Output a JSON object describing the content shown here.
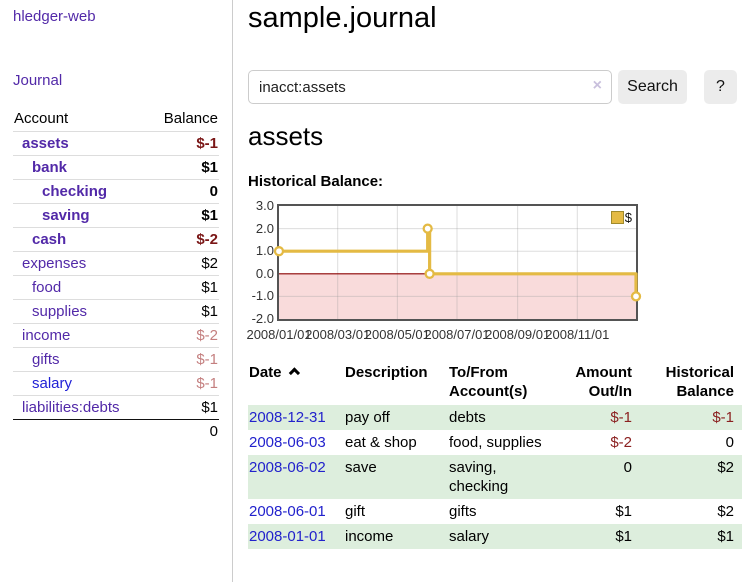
{
  "colors": {
    "link_purple": "#5229a8",
    "link_blue": "#2121d6",
    "negative_strong": "#7a1616",
    "negative_soft": "#c47f7f",
    "date_link_blue": "#2222cc",
    "row_green": "#ddeedd",
    "chart_gold": "#e4ba44",
    "chart_pink": "#f9dbdb",
    "chart_zero_line": "#8b0000"
  },
  "sidebar": {
    "app_title": "hledger-web",
    "nav": {
      "journal": "Journal"
    },
    "accounts_table": {
      "headers": {
        "account": "Account",
        "balance": "Balance"
      },
      "rows": [
        {
          "account": "assets",
          "balance": "$-1",
          "indent": 0,
          "bold": true,
          "link": "purple",
          "balance_style": "neg-strong"
        },
        {
          "account": "bank",
          "balance": "$1",
          "indent": 1,
          "bold": true,
          "link": "purple",
          "balance_style": "normal"
        },
        {
          "account": "checking",
          "balance": "0",
          "indent": 2,
          "bold": true,
          "link": "purple",
          "balance_style": "normal"
        },
        {
          "account": "saving",
          "balance": "$1",
          "indent": 2,
          "bold": true,
          "link": "purple",
          "balance_style": "normal"
        },
        {
          "account": "cash",
          "balance": "$-2",
          "indent": 1,
          "bold": true,
          "link": "purple",
          "balance_style": "neg-strong"
        },
        {
          "account": "expenses",
          "balance": "$2",
          "indent": 0,
          "bold": false,
          "link": "purple",
          "balance_style": "normal"
        },
        {
          "account": "food",
          "balance": "$1",
          "indent": 1,
          "bold": false,
          "link": "purple",
          "balance_style": "normal"
        },
        {
          "account": "supplies",
          "balance": "$1",
          "indent": 1,
          "bold": false,
          "link": "purple",
          "balance_style": "normal"
        },
        {
          "account": "income",
          "balance": "$-2",
          "indent": 0,
          "bold": false,
          "link": "purple",
          "balance_style": "neg-soft"
        },
        {
          "account": "gifts",
          "balance": "$-1",
          "indent": 1,
          "bold": false,
          "link": "purple",
          "balance_style": "neg-soft"
        },
        {
          "account": "salary",
          "balance": "$-1",
          "indent": 1,
          "bold": false,
          "link": "blue",
          "balance_style": "neg-soft"
        },
        {
          "account": "liabilities:debts",
          "balance": "$1",
          "indent": 0,
          "bold": false,
          "link": "purple",
          "balance_style": "normal"
        }
      ],
      "total": "0"
    }
  },
  "main": {
    "title": "sample.journal",
    "search": {
      "value": "inacct:assets",
      "placeholder": "",
      "clear_icon": "×",
      "search_button": "Search",
      "help_button": "?"
    },
    "account_heading": "assets",
    "chart_heading": "Historical Balance:"
  },
  "chart_data": {
    "type": "line",
    "step": true,
    "title": "Historical Balance",
    "x_start": "2008-01-01",
    "x_end": "2008-12-31",
    "ylim": [
      -2,
      3
    ],
    "yticks": [
      "3.0",
      "2.0",
      "1.0",
      "0.0",
      "-1.0",
      "-2.0"
    ],
    "xticks": [
      {
        "date": "2008-01-01",
        "label": "2008/01/01"
      },
      {
        "date": "2008-03-01",
        "label": "2008/03/01"
      },
      {
        "date": "2008-05-01",
        "label": "2008/05/01"
      },
      {
        "date": "2008-07-01",
        "label": "2008/07/01"
      },
      {
        "date": "2008-09-01",
        "label": "2008/09/01"
      },
      {
        "date": "2008-11-01",
        "label": "2008/11/01"
      }
    ],
    "grid": true,
    "negative_region_shaded": true,
    "legend": {
      "label": "$",
      "position": "top-right"
    },
    "series": [
      {
        "name": "$",
        "points": [
          {
            "date": "2008-01-01",
            "value": 1
          },
          {
            "date": "2008-06-01",
            "value": 2
          },
          {
            "date": "2008-06-03",
            "value": 0
          },
          {
            "date": "2008-12-31",
            "value": -1
          }
        ]
      }
    ]
  },
  "register": {
    "headers": {
      "date": "Date",
      "description": "Description",
      "accounts": "To/From Account(s)",
      "amount": "Amount Out/In",
      "balance": "Historical Balance"
    },
    "sort": {
      "column": "date",
      "direction": "ascending"
    },
    "rows": [
      {
        "date": "2008-12-31",
        "description": "pay off",
        "accounts": "debts",
        "amount": "$-1",
        "amount_negative": true,
        "balance": "$-1",
        "balance_negative": true
      },
      {
        "date": "2008-06-03",
        "description": "eat & shop",
        "accounts": "food, supplies",
        "amount": "$-2",
        "amount_negative": true,
        "balance": "0",
        "balance_negative": false
      },
      {
        "date": "2008-06-02",
        "description": "save",
        "accounts": "saving, checking",
        "amount": "0",
        "amount_negative": false,
        "balance": "$2",
        "balance_negative": false
      },
      {
        "date": "2008-06-01",
        "description": "gift",
        "accounts": "gifts",
        "amount": "$1",
        "amount_negative": false,
        "balance": "$2",
        "balance_negative": false
      },
      {
        "date": "2008-01-01",
        "description": "income",
        "accounts": "salary",
        "amount": "$1",
        "amount_negative": false,
        "balance": "$1",
        "balance_negative": false
      }
    ]
  }
}
